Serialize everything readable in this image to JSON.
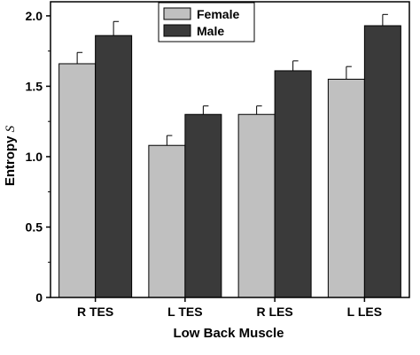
{
  "chart_data": {
    "type": "bar",
    "xlabel": "Low Back Muscle",
    "ylabel_main": "Entropy ",
    "ylabel_italic": "S",
    "categories": [
      "R TES",
      "L TES",
      "R LES",
      "L LES"
    ],
    "ylim": [
      0,
      2.1
    ],
    "yticks": [
      "0",
      "0.5",
      "1.0",
      "1.5",
      "2.0"
    ],
    "ytick_values": [
      0,
      0.5,
      1.0,
      1.5,
      2.0
    ],
    "grid": false,
    "legend_position": "top-center",
    "series": [
      {
        "name": "Female",
        "color": "#c0c0c0",
        "values": [
          1.66,
          1.08,
          1.3,
          1.55
        ],
        "errors": [
          0.08,
          0.07,
          0.06,
          0.09
        ]
      },
      {
        "name": "Male",
        "color": "#3a3a3a",
        "values": [
          1.86,
          1.3,
          1.61,
          1.93
        ],
        "errors": [
          0.1,
          0.06,
          0.07,
          0.08
        ]
      }
    ]
  }
}
